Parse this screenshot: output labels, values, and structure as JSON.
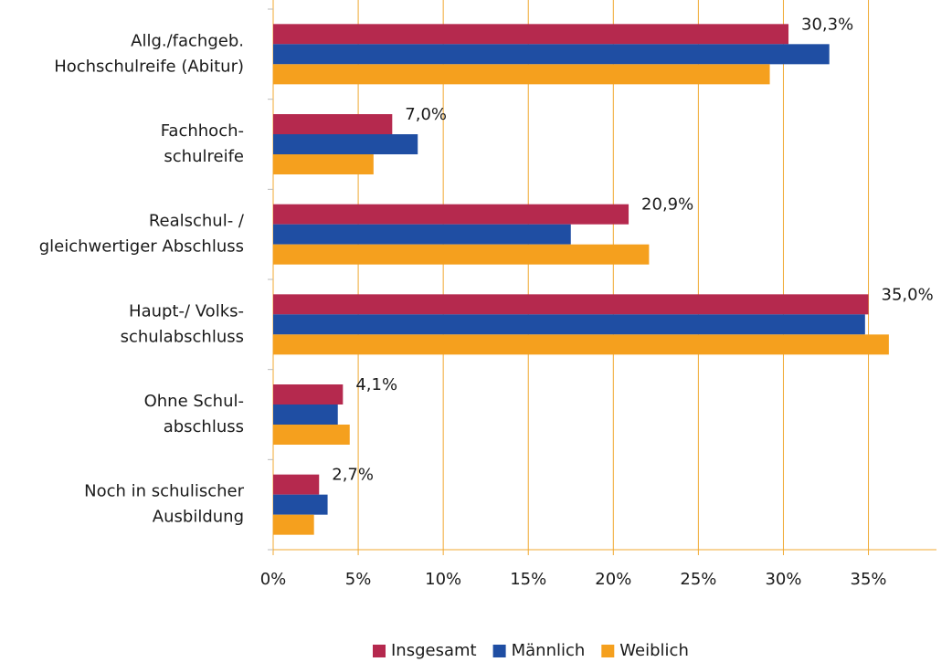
{
  "chart_data": {
    "type": "bar",
    "orientation": "horizontal",
    "categories": [
      "Allg./fachgeb.\nHochschulreife (Abitur)",
      "Fachhoch-\nschulreife",
      "Realschul- /\ngleichwertiger Abschluss",
      "Haupt-/ Volks-\nschulabschluss",
      "Ohne Schul-\nabschluss",
      "Noch in schulischer\nAusbildung"
    ],
    "series": [
      {
        "name": "Insgesamt",
        "color": "#b5294e",
        "values": [
          30.3,
          7.0,
          20.9,
          35.0,
          4.1,
          2.7
        ],
        "value_labels": [
          "30,3%",
          "7,0%",
          "20,9%",
          "35,0%",
          "4,1%",
          "2,7%"
        ]
      },
      {
        "name": "Männlich",
        "color": "#1f4ea3",
        "values": [
          32.7,
          8.5,
          17.5,
          34.8,
          3.8,
          3.2
        ]
      },
      {
        "name": "Weiblich",
        "color": "#f5a01e",
        "values": [
          29.2,
          5.9,
          22.1,
          36.2,
          4.5,
          2.4
        ]
      }
    ],
    "xlim": [
      0,
      39
    ],
    "xticks": [
      {
        "value": 0,
        "label": "0%"
      },
      {
        "value": 5,
        "label": "5%"
      },
      {
        "value": 10,
        "label": "10%"
      },
      {
        "value": 15,
        "label": "15%"
      },
      {
        "value": 20,
        "label": "20%"
      },
      {
        "value": 25,
        "label": "25%"
      },
      {
        "value": 30,
        "label": "30%"
      },
      {
        "value": 35,
        "label": "35%"
      }
    ],
    "grid": true,
    "grid_color": "#f0a830",
    "legend": "bottom"
  }
}
